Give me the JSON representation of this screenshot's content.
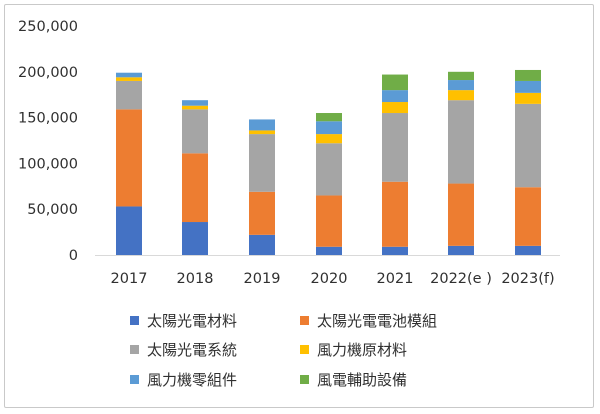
{
  "chart_data": {
    "type": "bar",
    "stacked": true,
    "categories": [
      "2017",
      "2018",
      "2019",
      "2020",
      "2021",
      "2022(e )",
      "2023(f)"
    ],
    "series": [
      {
        "name": "太陽光電材料",
        "color": "#4472C4",
        "values": [
          53000,
          36000,
          22000,
          9000,
          9000,
          10000,
          10000
        ]
      },
      {
        "name": "太陽光電電池模組",
        "color": "#ED7D31",
        "values": [
          106000,
          75000,
          47000,
          56000,
          71000,
          68000,
          64000
        ]
      },
      {
        "name": "太陽光電系統",
        "color": "#A5A5A5",
        "values": [
          31000,
          48000,
          63000,
          57000,
          75000,
          91000,
          91000
        ]
      },
      {
        "name": "風力機原材料",
        "color": "#FFC000",
        "values": [
          4000,
          4000,
          4000,
          10000,
          12000,
          11000,
          12000
        ]
      },
      {
        "name": "風力機零組件",
        "color": "#5B9BD5",
        "values": [
          5000,
          6000,
          12000,
          14000,
          13000,
          11000,
          13000
        ]
      },
      {
        "name": "風電輔助設備",
        "color": "#70AD47",
        "values": [
          0,
          0,
          0,
          9000,
          17000,
          9000,
          12000
        ]
      }
    ],
    "ylim": [
      0,
      250000
    ],
    "yticks": [
      0,
      50000,
      100000,
      150000,
      200000,
      250000
    ],
    "ytick_labels": [
      "0",
      "50,000",
      "100,000",
      "150,000",
      "200,000",
      "250,000"
    ],
    "grid": false,
    "legend_position": "bottom"
  }
}
